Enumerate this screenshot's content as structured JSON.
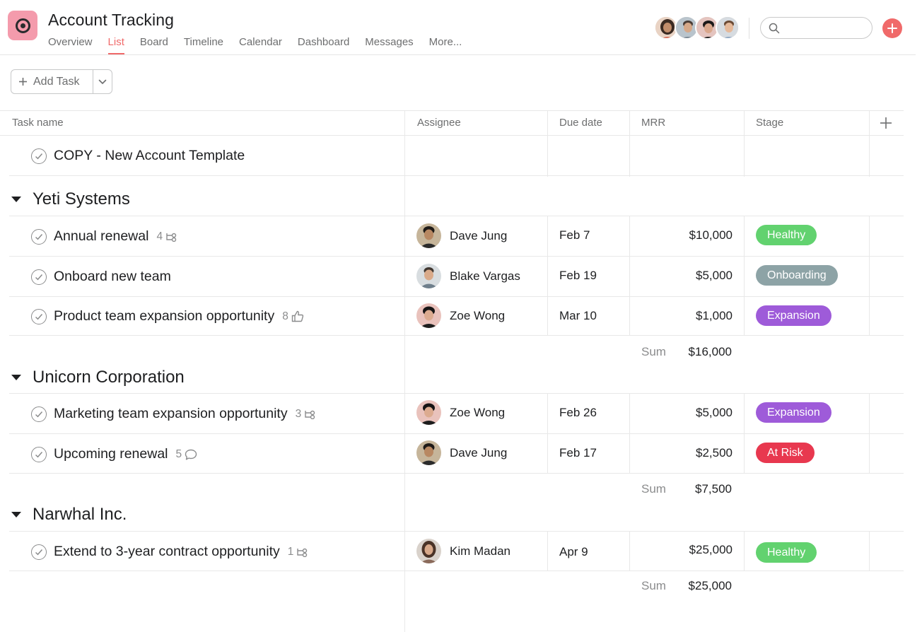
{
  "project": {
    "title": "Account Tracking",
    "icon": "project-circle-icon"
  },
  "nav": {
    "tabs": [
      "Overview",
      "List",
      "Board",
      "Timeline",
      "Calendar",
      "Dashboard",
      "Messages",
      "More..."
    ],
    "active": "List"
  },
  "header": {
    "members": [
      "member-1",
      "member-2",
      "member-3",
      "member-4"
    ],
    "search_placeholder": "",
    "add_icon": "plus-icon"
  },
  "toolbar": {
    "add_task_label": "Add Task"
  },
  "columns": {
    "task": "Task name",
    "assignee": "Assignee",
    "due": "Due date",
    "mrr": "MRR",
    "stage": "Stage"
  },
  "template_task": {
    "name": "COPY - New Account Template"
  },
  "colors": {
    "accent": "#f06a6a",
    "healthy": "#62d26f",
    "onboarding": "#8da3a6",
    "expansion": "#9e5bd9",
    "at_risk": "#e8384f"
  },
  "sections": [
    {
      "name": "Yeti Systems",
      "tasks": [
        {
          "name": "Annual renewal",
          "meta_count": "4",
          "meta_icon": "subtask-icon",
          "assignee": "Dave Jung",
          "due": "Feb 7",
          "mrr": "$10,000",
          "stage": "Healthy"
        },
        {
          "name": "Onboard new team",
          "meta_count": "",
          "meta_icon": "",
          "assignee": "Blake Vargas",
          "due": "Feb 19",
          "mrr": "$5,000",
          "stage": "Onboarding"
        },
        {
          "name": "Product team expansion opportunity",
          "meta_count": "8",
          "meta_icon": "thumbs-up-icon",
          "assignee": "Zoe Wong",
          "due": "Mar 10",
          "mrr": "$1,000",
          "stage": "Expansion"
        }
      ],
      "sum_label": "Sum",
      "sum": "$16,000"
    },
    {
      "name": "Unicorn Corporation",
      "tasks": [
        {
          "name": "Marketing team expansion opportunity",
          "meta_count": "3",
          "meta_icon": "subtask-icon",
          "assignee": "Zoe Wong",
          "due": "Feb 26",
          "mrr": "$5,000",
          "stage": "Expansion"
        },
        {
          "name": "Upcoming renewal",
          "meta_count": "5",
          "meta_icon": "comment-icon",
          "assignee": "Dave Jung",
          "due": "Feb 17",
          "mrr": "$2,500",
          "stage": "At Risk"
        }
      ],
      "sum_label": "Sum",
      "sum": "$7,500"
    },
    {
      "name": "Narwhal Inc.",
      "tasks": [
        {
          "name": "Extend to 3-year contract opportunity",
          "meta_count": "1",
          "meta_icon": "subtask-icon",
          "assignee": "Kim Madan",
          "due": "Apr 9",
          "mrr": "$25,000",
          "stage": "Healthy"
        }
      ],
      "sum_label": "Sum",
      "sum": "$25,000"
    }
  ]
}
